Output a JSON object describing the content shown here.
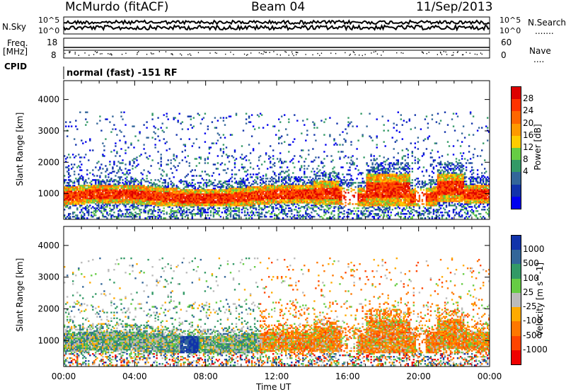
{
  "header": {
    "station": "McMurdo (fitACF)",
    "beam": "Beam 04",
    "date": "11/Sep/2013"
  },
  "strip_labels": {
    "nsky": "N.Sky",
    "nsearch": "N.Search",
    "nsearch_dots": ".......",
    "freq": "Freq.",
    "mhz": "[MHz]",
    "nave": "Nave",
    "nave_dots": "....",
    "cpid": "CPID",
    "cpid_value": "normal (fast) -151 RF",
    "noise_ticks_left": [
      "10^5",
      "10^0"
    ],
    "noise_ticks_right": [
      "10^5",
      "10^0"
    ],
    "freq_ticks": [
      "18",
      "8"
    ],
    "nave_ticks": [
      "60",
      "0"
    ]
  },
  "chart_data": [
    {
      "type": "heatmap",
      "title": "",
      "xlabel": "Time UT",
      "ylabel": "Slant Range [km]",
      "xlim": [
        0,
        24
      ],
      "ylim": [
        180,
        4600
      ],
      "x_ticks": [
        "00:00",
        "04:00",
        "08:00",
        "12:00",
        "16:00",
        "20:00",
        "00:00"
      ],
      "y_ticks": [
        1000,
        2000,
        3000,
        4000
      ],
      "colorbar": {
        "label": "Power [dB]",
        "ticks": [
          "28",
          "24",
          "20",
          "16",
          "12",
          "8",
          "4"
        ],
        "colors": [
          "#dd0000",
          "#ff3300",
          "#ff6600",
          "#ff9900",
          "#ffcc00",
          "#66cc44",
          "#339966",
          "#336699",
          "#1133aa",
          "#0000ee"
        ]
      }
    },
    {
      "type": "heatmap",
      "title": "",
      "xlabel": "Time UT",
      "ylabel": "Slant Range [km]",
      "xlim": [
        0,
        24
      ],
      "ylim": [
        180,
        4600
      ],
      "x_ticks": [
        "00:00",
        "04:00",
        "08:00",
        "12:00",
        "16:00",
        "20:00",
        "00:00"
      ],
      "y_ticks": [
        1000,
        2000,
        3000,
        4000
      ],
      "colorbar": {
        "label": "Velocity [m s^-1]",
        "ticks": [
          "1000",
          "500",
          "100",
          "25",
          "-25",
          "-100",
          "-500",
          "-1000"
        ],
        "colors": [
          "#1133aa",
          "#336699",
          "#339966",
          "#66cc44",
          "#bbbbbb",
          "#ffaa00",
          "#ff7700",
          "#ff4400",
          "#ee0000"
        ]
      }
    }
  ]
}
